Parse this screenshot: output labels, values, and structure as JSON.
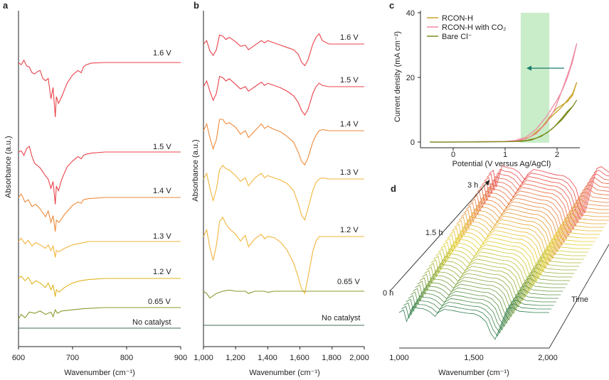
{
  "figure": {
    "panel_labels": [
      "a",
      "b",
      "c",
      "d"
    ]
  },
  "chart_data": [
    {
      "panel": "a",
      "type": "line",
      "xlabel": "Wavenumber (cm⁻¹)",
      "ylabel": "Absorbance (a.u.)",
      "xlim": [
        600,
        900
      ],
      "xticks": [
        "600",
        "700",
        "800",
        "900"
      ],
      "series": [
        {
          "name": "1.6 V",
          "color": "#e8434b",
          "x": [
            600,
            605,
            610,
            615,
            620,
            625,
            630,
            635,
            640,
            645,
            650,
            655,
            660,
            664,
            668,
            670,
            674,
            680,
            690,
            700,
            710,
            716,
            720,
            725,
            735,
            760,
            800,
            850,
            900
          ],
          "y": [
            0.0,
            -0.2,
            0.2,
            -0.3,
            -0.4,
            -0.9,
            -1.0,
            -0.8,
            -0.7,
            -1.4,
            -1.6,
            -1.4,
            -3.2,
            -2.2,
            -4.8,
            -3.0,
            -3.6,
            -3.0,
            -1.8,
            -1.1,
            -0.7,
            -0.9,
            -0.4,
            -0.2,
            -0.05,
            0.0,
            0.0,
            0.0,
            0.0
          ]
        },
        {
          "name": "1.5 V",
          "color": "#e8434b",
          "x": [
            600,
            605,
            610,
            615,
            620,
            625,
            630,
            640,
            650,
            655,
            660,
            664,
            668,
            670,
            674,
            680,
            690,
            700,
            710,
            716,
            720,
            725,
            735,
            760,
            800,
            850,
            900
          ],
          "y": [
            0.0,
            0.1,
            -0.3,
            0.3,
            0.5,
            -0.4,
            -1.0,
            -1.4,
            -2.1,
            -2.4,
            -3.2,
            -2.6,
            -4.6,
            -3.0,
            -3.4,
            -2.4,
            -1.3,
            -0.8,
            -0.4,
            -0.6,
            -0.3,
            -0.2,
            -0.1,
            0.0,
            0.0,
            0.0,
            0.0
          ]
        },
        {
          "name": "1.4 V",
          "color": "#ee8a3a",
          "x": [
            600,
            605,
            612,
            618,
            625,
            632,
            640,
            650,
            655,
            660,
            664,
            668,
            670,
            675,
            685,
            700,
            710,
            716,
            720,
            730,
            760,
            800,
            850,
            900
          ],
          "y": [
            0.0,
            0.3,
            -0.4,
            -0.2,
            -0.8,
            -0.6,
            -1.0,
            -1.7,
            -1.2,
            -2.2,
            -1.6,
            -3.0,
            -2.0,
            -2.2,
            -1.5,
            -0.7,
            -0.4,
            -0.5,
            -0.2,
            -0.1,
            0.0,
            0.0,
            0.0,
            0.0
          ]
        },
        {
          "name": "1.3 V",
          "color": "#f2b53c",
          "x": [
            600,
            605,
            612,
            618,
            625,
            632,
            640,
            650,
            655,
            660,
            664,
            668,
            670,
            675,
            685,
            700,
            710,
            720,
            730,
            760,
            800,
            850,
            900
          ],
          "y": [
            0.0,
            0.3,
            -0.2,
            0.1,
            -0.4,
            -0.1,
            -0.3,
            -0.6,
            -0.3,
            -0.8,
            -0.4,
            -1.4,
            -0.8,
            -0.9,
            -0.6,
            -0.3,
            -0.2,
            -0.1,
            0.0,
            0.0,
            0.0,
            0.0,
            0.0
          ]
        },
        {
          "name": "1.2 V",
          "color": "#e0b31c",
          "x": [
            600,
            605,
            612,
            618,
            625,
            632,
            640,
            650,
            655,
            660,
            664,
            668,
            670,
            675,
            685,
            700,
            715,
            730,
            760,
            800,
            850,
            900
          ],
          "y": [
            0.0,
            0.2,
            -0.2,
            0.1,
            -0.5,
            -0.2,
            -0.4,
            -0.8,
            -0.4,
            -1.0,
            -0.6,
            -1.6,
            -1.0,
            -1.2,
            -0.8,
            -0.4,
            -0.2,
            -0.1,
            0.0,
            0.0,
            0.0,
            0.0
          ]
        },
        {
          "name": "0.65 V",
          "color": "#8a9a2e",
          "x": [
            600,
            605,
            612,
            620,
            630,
            640,
            650,
            660,
            664,
            668,
            672,
            680,
            700,
            720,
            760,
            800,
            850,
            900
          ],
          "y": [
            -1.0,
            -0.6,
            -0.9,
            -0.4,
            -0.5,
            -0.3,
            -0.6,
            -0.4,
            -0.8,
            -0.2,
            -0.5,
            -0.3,
            -0.2,
            -0.1,
            0.0,
            0.0,
            0.0,
            0.0
          ]
        },
        {
          "name": "No catalyst",
          "color": "#3f6e52",
          "x": [
            600,
            650,
            700,
            750,
            800,
            850,
            900
          ],
          "y": [
            0.0,
            0.0,
            0.0,
            0.0,
            0.0,
            0.0,
            0.0
          ]
        }
      ]
    },
    {
      "panel": "b",
      "type": "line",
      "xlabel": "Wavenumber (cm⁻¹)",
      "ylabel": "Absorbance (a.u.)",
      "xlim": [
        1000,
        2000
      ],
      "xticks": [
        "1,000",
        "1,200",
        "1,400",
        "1,600",
        "1,800",
        "2,000"
      ],
      "series": [
        {
          "name": "1.6 V",
          "color": "#e8434b",
          "x": [
            1000,
            1020,
            1040,
            1060,
            1080,
            1100,
            1120,
            1140,
            1160,
            1200,
            1230,
            1260,
            1280,
            1320,
            1360,
            1380,
            1400,
            1440,
            1480,
            1520,
            1560,
            1590,
            1610,
            1630,
            1650,
            1680,
            1700,
            1720,
            1740,
            1780,
            1850,
            2000
          ],
          "y": [
            0.0,
            0.3,
            -0.6,
            -1.0,
            -0.5,
            0.8,
            0.7,
            0.4,
            0.6,
            0.2,
            -0.2,
            -0.1,
            -0.5,
            -0.1,
            0.3,
            0.1,
            0.3,
            0.1,
            -0.1,
            -0.3,
            -0.5,
            -0.9,
            -1.6,
            -1.9,
            -1.4,
            0.0,
            0.6,
            0.9,
            0.3,
            0.0,
            0.0,
            0.0
          ]
        },
        {
          "name": "1.5 V",
          "color": "#e8434b",
          "x": [
            1000,
            1020,
            1040,
            1060,
            1080,
            1100,
            1120,
            1140,
            1160,
            1200,
            1230,
            1260,
            1280,
            1320,
            1360,
            1380,
            1400,
            1440,
            1480,
            1520,
            1560,
            1590,
            1610,
            1630,
            1650,
            1680,
            1700,
            1720,
            1740,
            1780,
            1850,
            2000
          ],
          "y": [
            0.0,
            0.5,
            -0.4,
            -1.2,
            -0.6,
            0.9,
            0.8,
            0.5,
            0.7,
            0.2,
            -0.2,
            0.0,
            -0.4,
            0.0,
            0.4,
            0.1,
            0.3,
            0.1,
            -0.1,
            -0.4,
            -0.8,
            -1.4,
            -2.1,
            -2.5,
            -2.0,
            -0.6,
            0.0,
            0.3,
            0.1,
            0.0,
            0.0,
            0.0
          ]
        },
        {
          "name": "1.4 V",
          "color": "#ee8a3a",
          "x": [
            1000,
            1020,
            1040,
            1060,
            1080,
            1100,
            1120,
            1140,
            1160,
            1200,
            1230,
            1260,
            1280,
            1320,
            1360,
            1380,
            1400,
            1440,
            1480,
            1520,
            1560,
            1590,
            1610,
            1630,
            1650,
            1680,
            1700,
            1720,
            1740,
            1780,
            1850,
            2000
          ],
          "y": [
            0.0,
            0.6,
            -0.6,
            -1.6,
            -0.8,
            1.0,
            1.0,
            0.6,
            0.7,
            0.3,
            -0.3,
            0.0,
            -0.6,
            0.0,
            0.6,
            0.2,
            0.4,
            0.1,
            -0.1,
            -0.5,
            -1.0,
            -1.9,
            -2.7,
            -3.0,
            -2.4,
            -1.0,
            -0.4,
            0.0,
            0.1,
            0.0,
            0.0,
            0.0
          ]
        },
        {
          "name": "1.3 V",
          "color": "#f2b53c",
          "x": [
            1000,
            1020,
            1040,
            1060,
            1080,
            1100,
            1120,
            1140,
            1160,
            1200,
            1230,
            1260,
            1280,
            1320,
            1360,
            1380,
            1400,
            1440,
            1480,
            1520,
            1560,
            1590,
            1610,
            1630,
            1650,
            1680,
            1700,
            1720,
            1740,
            1780,
            1850,
            2000
          ],
          "y": [
            0.0,
            0.5,
            -0.8,
            -1.9,
            -0.9,
            0.8,
            1.2,
            0.9,
            0.8,
            0.3,
            -0.2,
            0.1,
            -0.6,
            0.1,
            0.5,
            0.1,
            0.3,
            0.1,
            -0.1,
            -0.4,
            -1.0,
            -2.2,
            -3.2,
            -3.6,
            -2.6,
            -1.0,
            -0.3,
            0.0,
            0.1,
            0.0,
            0.0,
            0.0
          ]
        },
        {
          "name": "1.2 V",
          "color": "#f2b53c",
          "x": [
            1000,
            1020,
            1040,
            1060,
            1080,
            1100,
            1120,
            1140,
            1160,
            1200,
            1230,
            1260,
            1280,
            1320,
            1360,
            1380,
            1400,
            1440,
            1480,
            1520,
            1560,
            1590,
            1610,
            1630,
            1650,
            1680,
            1700,
            1720,
            1740,
            1780,
            1850,
            2000
          ],
          "y": [
            0.0,
            0.6,
            -1.0,
            -2.1,
            -0.8,
            1.3,
            1.7,
            1.1,
            0.7,
            0.2,
            -0.4,
            0.1,
            -0.9,
            -0.2,
            0.2,
            -0.2,
            0.0,
            -0.1,
            -0.5,
            -1.2,
            -2.3,
            -3.6,
            -4.6,
            -5.0,
            -3.6,
            -1.3,
            -0.4,
            0.0,
            0.0,
            0.0,
            0.0,
            0.0
          ]
        },
        {
          "name": "0.65 V",
          "color": "#8a9a2e",
          "x": [
            1000,
            1020,
            1040,
            1060,
            1080,
            1120,
            1160,
            1200,
            1260,
            1280,
            1320,
            1380,
            1400,
            1440,
            1500,
            1560,
            1640,
            1700,
            1800,
            1900,
            2000
          ],
          "y": [
            0.0,
            -0.2,
            -0.6,
            -0.4,
            -0.2,
            0.0,
            0.1,
            0.0,
            0.0,
            -0.2,
            0.0,
            0.0,
            -0.1,
            0.0,
            0.0,
            0.0,
            0.0,
            0.0,
            0.0,
            0.0,
            0.0
          ]
        },
        {
          "name": "No catalyst",
          "color": "#3f6e52",
          "x": [
            1000,
            1200,
            1400,
            1600,
            1800,
            2000
          ],
          "y": [
            0.0,
            0.0,
            0.0,
            0.0,
            0.0,
            0.0
          ]
        }
      ]
    },
    {
      "panel": "c",
      "type": "line",
      "xlabel": "Potential (V versus Ag/AgCl)",
      "ylabel": "Current density (mA cm⁻²)",
      "xlim": [
        -0.5,
        2.5
      ],
      "ylim": [
        -1,
        40
      ],
      "xticks": [
        "0",
        "1",
        "2"
      ],
      "yticks": [
        "0",
        "20",
        "40"
      ],
      "legend": [
        "RCON-H",
        "RCON-H with CO₂",
        "Bare Cl⁻"
      ],
      "shaded_region_x": [
        1.3,
        1.85
      ],
      "series": [
        {
          "name": "RCON-H",
          "color": "#c9a227",
          "x": [
            -0.45,
            0,
            0.5,
            1.0,
            1.2,
            1.4,
            1.55,
            1.7,
            1.8,
            1.9,
            2.0,
            2.1,
            2.2,
            2.3,
            2.38,
            2.3,
            2.1,
            1.9,
            1.7,
            1.5,
            1.3,
            1.0,
            0.5,
            0,
            -0.45
          ],
          "y": [
            0.0,
            0.0,
            0.1,
            0.2,
            0.4,
            1.0,
            2.2,
            4.5,
            6.5,
            8.8,
            10.5,
            11.5,
            12.5,
            14.5,
            18.5,
            15,
            11,
            8,
            4.5,
            1.8,
            0.5,
            0.2,
            0.1,
            0.0,
            0.0
          ]
        },
        {
          "name": "RCON-H with CO₂",
          "color": "#f08aa0",
          "x": [
            -0.45,
            0,
            0.5,
            1.0,
            1.2,
            1.4,
            1.6,
            1.8,
            1.95,
            2.05,
            2.15,
            2.25,
            2.32,
            2.38,
            2.3,
            2.2,
            2.1,
            2.0,
            1.8,
            1.6,
            1.4,
            1.2,
            1.0,
            0.5,
            0,
            -0.45
          ],
          "y": [
            0.0,
            0.0,
            0.1,
            0.2,
            0.4,
            1.0,
            2.6,
            6.0,
            10.0,
            14.0,
            18.5,
            23.0,
            27.0,
            30.5,
            25.0,
            20.0,
            16.0,
            13.0,
            8.0,
            4.0,
            1.5,
            0.5,
            0.2,
            0.1,
            0.0,
            0.0
          ]
        },
        {
          "name": "Bare Cl⁻",
          "color": "#7a8a1e",
          "x": [
            -0.45,
            0,
            0.5,
            1.0,
            1.2,
            1.4,
            1.6,
            1.8,
            1.95,
            2.1,
            2.2,
            2.3,
            2.38,
            2.3,
            2.1,
            1.9,
            1.7,
            1.5,
            1.3,
            1.0,
            0.5,
            0,
            -0.45
          ],
          "y": [
            0.0,
            0.0,
            0.05,
            0.1,
            0.2,
            0.5,
            1.2,
            2.8,
            4.8,
            7.5,
            9.5,
            11.0,
            13.0,
            11.0,
            7.0,
            4.0,
            1.8,
            0.6,
            0.2,
            0.1,
            0.05,
            0.0,
            0.0
          ]
        }
      ]
    },
    {
      "panel": "d",
      "type": "line",
      "xlabel": "Wavenumber (cm⁻¹)",
      "xlim": [
        1000,
        2000
      ],
      "xticks": [
        "1,000",
        "1,500",
        "2,000"
      ],
      "time_labels": [
        "0 h",
        "1.5 h",
        "3 h"
      ],
      "depth_label": "Time",
      "traces": 40,
      "color_start": "#2e7d4f",
      "color_mid": "#e6d22a",
      "color_end": "#e8434b",
      "profile_x": [
        1000,
        1030,
        1050,
        1070,
        1090,
        1120,
        1160,
        1200,
        1240,
        1260,
        1300,
        1360,
        1400,
        1450,
        1500,
        1540,
        1580,
        1610,
        1640,
        1680,
        1720,
        1750,
        1800,
        1900,
        2000
      ],
      "profile_y": [
        0.0,
        0.4,
        -1.4,
        -0.2,
        0.9,
        0.7,
        0.6,
        0.2,
        -0.6,
        0.0,
        0.5,
        0.3,
        0.1,
        -0.1,
        -0.2,
        -0.6,
        -1.5,
        -3.2,
        -4.2,
        -1.8,
        0.6,
        0.8,
        0.2,
        0.0,
        0.0
      ]
    }
  ]
}
